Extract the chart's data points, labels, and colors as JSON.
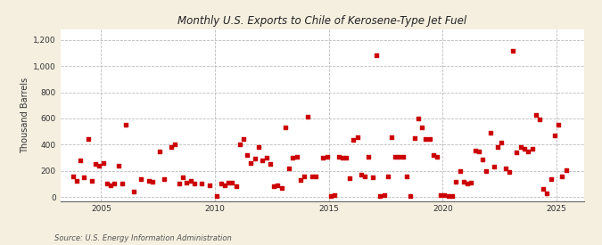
{
  "title": "U.S. Exports to Chile of Kerosene-Type Jet Fuel",
  "title_prefix": "Monthly ",
  "ylabel": "Thousand Barrels",
  "source": "Source: U.S. Energy Information Administration",
  "bg_color": "#f5efe0",
  "plot_bg_color": "#ffffff",
  "marker_color": "#cc0000",
  "marker_size": 5,
  "xlim": [
    2003.2,
    2026.2
  ],
  "ylim": [
    -30,
    1280
  ],
  "yticks": [
    0,
    200,
    400,
    600,
    800,
    1000,
    1200
  ],
  "ytick_labels": [
    "0",
    "200",
    "400",
    "600",
    "800",
    "1,000",
    "1,200"
  ],
  "xticks": [
    2005,
    2010,
    2015,
    2020,
    2025
  ],
  "data": [
    [
      2003.75,
      160
    ],
    [
      2003.92,
      120
    ],
    [
      2004.08,
      280
    ],
    [
      2004.25,
      150
    ],
    [
      2004.42,
      440
    ],
    [
      2004.58,
      120
    ],
    [
      2004.75,
      250
    ],
    [
      2004.92,
      240
    ],
    [
      2005.08,
      260
    ],
    [
      2005.25,
      100
    ],
    [
      2005.42,
      90
    ],
    [
      2005.58,
      100
    ],
    [
      2005.75,
      240
    ],
    [
      2005.92,
      100
    ],
    [
      2006.08,
      550
    ],
    [
      2006.42,
      40
    ],
    [
      2006.75,
      140
    ],
    [
      2007.08,
      120
    ],
    [
      2007.25,
      115
    ],
    [
      2007.58,
      350
    ],
    [
      2007.75,
      135
    ],
    [
      2008.08,
      380
    ],
    [
      2008.25,
      400
    ],
    [
      2008.42,
      100
    ],
    [
      2008.58,
      150
    ],
    [
      2008.75,
      110
    ],
    [
      2008.92,
      125
    ],
    [
      2009.08,
      100
    ],
    [
      2009.42,
      100
    ],
    [
      2009.75,
      90
    ],
    [
      2010.08,
      5
    ],
    [
      2010.25,
      100
    ],
    [
      2010.42,
      90
    ],
    [
      2010.58,
      110
    ],
    [
      2010.75,
      110
    ],
    [
      2010.92,
      85
    ],
    [
      2011.08,
      400
    ],
    [
      2011.25,
      440
    ],
    [
      2011.42,
      320
    ],
    [
      2011.58,
      260
    ],
    [
      2011.75,
      290
    ],
    [
      2011.92,
      385
    ],
    [
      2012.08,
      280
    ],
    [
      2012.25,
      300
    ],
    [
      2012.42,
      250
    ],
    [
      2012.58,
      80
    ],
    [
      2012.75,
      90
    ],
    [
      2012.92,
      70
    ],
    [
      2013.08,
      530
    ],
    [
      2013.25,
      220
    ],
    [
      2013.42,
      300
    ],
    [
      2013.58,
      310
    ],
    [
      2013.75,
      130
    ],
    [
      2013.92,
      155
    ],
    [
      2014.08,
      610
    ],
    [
      2014.25,
      160
    ],
    [
      2014.42,
      160
    ],
    [
      2014.75,
      300
    ],
    [
      2014.92,
      305
    ],
    [
      2015.08,
      10
    ],
    [
      2015.25,
      15
    ],
    [
      2015.42,
      305
    ],
    [
      2015.58,
      300
    ],
    [
      2015.75,
      300
    ],
    [
      2015.92,
      145
    ],
    [
      2016.08,
      435
    ],
    [
      2016.25,
      455
    ],
    [
      2016.42,
      170
    ],
    [
      2016.58,
      155
    ],
    [
      2016.75,
      305
    ],
    [
      2016.92,
      150
    ],
    [
      2017.08,
      1080
    ],
    [
      2017.25,
      10
    ],
    [
      2017.42,
      15
    ],
    [
      2017.58,
      160
    ],
    [
      2017.75,
      455
    ],
    [
      2017.92,
      310
    ],
    [
      2018.08,
      310
    ],
    [
      2018.25,
      305
    ],
    [
      2018.42,
      160
    ],
    [
      2018.58,
      10
    ],
    [
      2018.75,
      450
    ],
    [
      2018.92,
      600
    ],
    [
      2019.08,
      530
    ],
    [
      2019.25,
      440
    ],
    [
      2019.42,
      445
    ],
    [
      2019.58,
      320
    ],
    [
      2019.75,
      310
    ],
    [
      2019.92,
      15
    ],
    [
      2020.08,
      15
    ],
    [
      2020.25,
      10
    ],
    [
      2020.42,
      10
    ],
    [
      2020.58,
      115
    ],
    [
      2020.75,
      200
    ],
    [
      2020.92,
      115
    ],
    [
      2021.08,
      100
    ],
    [
      2021.25,
      110
    ],
    [
      2021.42,
      355
    ],
    [
      2021.58,
      345
    ],
    [
      2021.75,
      285
    ],
    [
      2021.92,
      200
    ],
    [
      2022.08,
      490
    ],
    [
      2022.25,
      230
    ],
    [
      2022.42,
      380
    ],
    [
      2022.58,
      415
    ],
    [
      2022.75,
      215
    ],
    [
      2022.92,
      190
    ],
    [
      2023.08,
      1120
    ],
    [
      2023.25,
      340
    ],
    [
      2023.42,
      380
    ],
    [
      2023.58,
      370
    ],
    [
      2023.75,
      350
    ],
    [
      2023.92,
      365
    ],
    [
      2024.08,
      630
    ],
    [
      2024.25,
      590
    ],
    [
      2024.42,
      60
    ],
    [
      2024.58,
      30
    ],
    [
      2024.75,
      140
    ],
    [
      2024.92,
      470
    ],
    [
      2025.08,
      550
    ],
    [
      2025.25,
      155
    ],
    [
      2025.42,
      205
    ]
  ]
}
